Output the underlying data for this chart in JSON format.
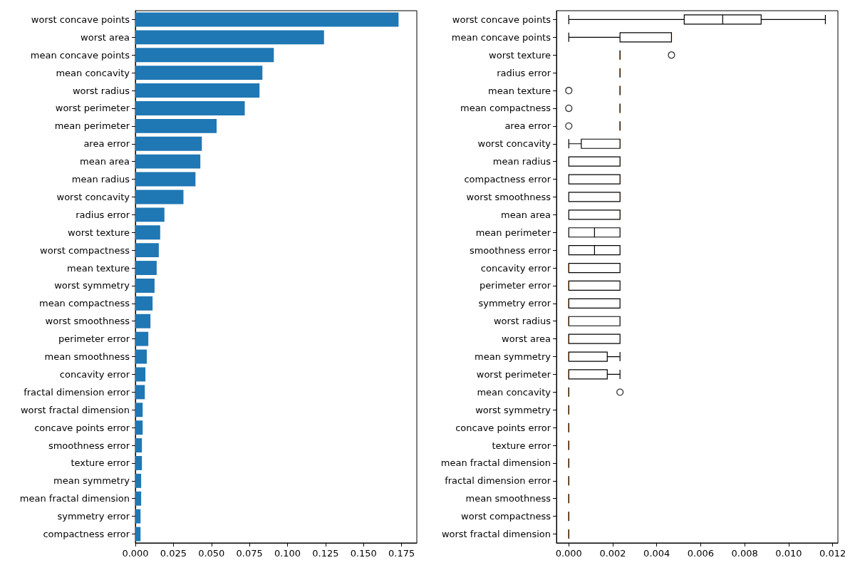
{
  "chart_data": [
    {
      "type": "bar",
      "orientation": "horizontal",
      "color": "#1f77b4",
      "categories": [
        "worst concave points",
        "worst area",
        "mean concave points",
        "mean concavity",
        "worst radius",
        "worst perimeter",
        "mean perimeter",
        "area error",
        "mean area",
        "mean radius",
        "worst concavity",
        "radius error",
        "worst texture",
        "worst compactness",
        "mean texture",
        "worst symmetry",
        "mean compactness",
        "worst smoothness",
        "perimeter error",
        "mean smoothness",
        "concavity error",
        "fractal dimension error",
        "worst fractal dimension",
        "concave points error",
        "smoothness error",
        "texture error",
        "mean symmetry",
        "mean fractal dimension",
        "symmetry error",
        "compactness error"
      ],
      "values": [
        0.173,
        0.124,
        0.091,
        0.0835,
        0.0816,
        0.0719,
        0.0534,
        0.0437,
        0.0427,
        0.0395,
        0.0316,
        0.0191,
        0.0163,
        0.0154,
        0.014,
        0.0126,
        0.0113,
        0.0099,
        0.0085,
        0.0075,
        0.0066,
        0.0062,
        0.0048,
        0.0048,
        0.0043,
        0.0043,
        0.0038,
        0.0038,
        0.0034,
        0.0034
      ],
      "xlim": [
        0,
        0.185
      ],
      "xticks": [
        {
          "value": 0,
          "label": "0.000"
        },
        {
          "value": 0.025,
          "label": "0.025"
        },
        {
          "value": 0.05,
          "label": "0.050"
        },
        {
          "value": 0.075,
          "label": "0.075"
        },
        {
          "value": 0.1,
          "label": "0.100"
        },
        {
          "value": 0.125,
          "label": "0.125"
        },
        {
          "value": 0.15,
          "label": "0.150"
        },
        {
          "value": 0.175,
          "label": "0.175"
        }
      ],
      "grid": false
    },
    {
      "type": "box",
      "orientation": "horizontal",
      "categories": [
        "worst concave points",
        "mean concave points",
        "worst texture",
        "radius error",
        "mean texture",
        "mean compactness",
        "area error",
        "worst concavity",
        "mean radius",
        "compactness error",
        "worst smoothness",
        "mean area",
        "mean perimeter",
        "smoothness error",
        "concavity error",
        "perimeter error",
        "symmetry error",
        "worst radius",
        "worst area",
        "mean symmetry",
        "worst perimeter",
        "mean concavity",
        "worst symmetry",
        "concave points error",
        "texture error",
        "mean fractal dimension",
        "fractal dimension error",
        "mean smoothness",
        "worst compactness",
        "worst fractal dimension"
      ],
      "boxes": [
        {
          "low": 0,
          "q1": 0.00525,
          "median": 0.007,
          "q3": 0.00875,
          "high": 0.01167
        },
        {
          "low": 0,
          "q1": 0.00233,
          "median": 0.00467,
          "q3": 0.00467,
          "high": 0.00467
        },
        {
          "low": 0.00233,
          "q1": 0.00233,
          "median": 0.00233,
          "q3": 0.00233,
          "high": 0.00233,
          "outliers": [
            0.00467
          ]
        },
        {
          "low": 0.00233,
          "q1": 0.00233,
          "median": 0.00233,
          "q3": 0.00233,
          "high": 0.00233
        },
        {
          "low": 0.00233,
          "q1": 0.00233,
          "median": 0.00233,
          "q3": 0.00233,
          "high": 0.00233,
          "outliers": [
            0
          ]
        },
        {
          "low": 0.00233,
          "q1": 0.00233,
          "median": 0.00233,
          "q3": 0.00233,
          "high": 0.00233,
          "outliers": [
            0
          ]
        },
        {
          "low": 0.00233,
          "q1": 0.00233,
          "median": 0.00233,
          "q3": 0.00233,
          "high": 0.00233,
          "outliers": [
            0
          ]
        },
        {
          "low": 0,
          "q1": 0.00057,
          "median": 0.00233,
          "q3": 0.00233,
          "high": 0.00233
        },
        {
          "low": 0,
          "q1": 0,
          "median": 0.00233,
          "q3": 0.00233,
          "high": 0.00233
        },
        {
          "low": 0,
          "q1": 0,
          "median": 0.00233,
          "q3": 0.00233,
          "high": 0.00233
        },
        {
          "low": 0,
          "q1": 0,
          "median": 0.00233,
          "q3": 0.00233,
          "high": 0.00233
        },
        {
          "low": 0,
          "q1": 0,
          "median": 0.00233,
          "q3": 0.00233,
          "high": 0.00233
        },
        {
          "low": 0,
          "q1": 0,
          "median": 0.00117,
          "q3": 0.00233,
          "high": 0.00233
        },
        {
          "low": 0,
          "q1": 0,
          "median": 0.00117,
          "q3": 0.00233,
          "high": 0.00233
        },
        {
          "low": 0,
          "q1": 0,
          "median": 0,
          "q3": 0.00233,
          "high": 0.00233
        },
        {
          "low": 0,
          "q1": 0,
          "median": 0,
          "q3": 0.00233,
          "high": 0.00233
        },
        {
          "low": 0,
          "q1": 0,
          "median": 0,
          "q3": 0.00233,
          "high": 0.00233
        },
        {
          "low": 0,
          "q1": 0,
          "median": 0,
          "q3": 0.00233,
          "high": 0.00233
        },
        {
          "low": 0,
          "q1": 0,
          "median": 0,
          "q3": 0.00233,
          "high": 0.00233
        },
        {
          "low": 0,
          "q1": 0,
          "median": 0,
          "q3": 0.00175,
          "high": 0.00233
        },
        {
          "low": 0,
          "q1": 0,
          "median": 0,
          "q3": 0.00175,
          "high": 0.00233
        },
        {
          "low": 0,
          "q1": 0,
          "median": 0,
          "q3": 0,
          "high": 0,
          "outliers": [
            0.00233
          ]
        },
        {
          "low": 0,
          "q1": 0,
          "median": 0,
          "q3": 0,
          "high": 0
        },
        {
          "low": 0,
          "q1": 0,
          "median": 0,
          "q3": 0,
          "high": 0
        },
        {
          "low": 0,
          "q1": 0,
          "median": 0,
          "q3": 0,
          "high": 0
        },
        {
          "low": 0,
          "q1": 0,
          "median": 0,
          "q3": 0,
          "high": 0
        },
        {
          "low": 0,
          "q1": 0,
          "median": 0,
          "q3": 0,
          "high": 0
        },
        {
          "low": 0,
          "q1": 0,
          "median": 0,
          "q3": 0,
          "high": 0
        },
        {
          "low": 0,
          "q1": 0,
          "median": 0,
          "q3": 0,
          "high": 0
        },
        {
          "low": 0,
          "q1": 0,
          "median": 0,
          "q3": 0,
          "high": 0
        }
      ],
      "xlim": [
        -0.00056,
        0.01224
      ],
      "xticks": [
        {
          "value": 0,
          "label": "0.000"
        },
        {
          "value": 0.002,
          "label": "0.002"
        },
        {
          "value": 0.004,
          "label": "0.004"
        },
        {
          "value": 0.006,
          "label": "0.006"
        },
        {
          "value": 0.008,
          "label": "0.008"
        },
        {
          "value": 0.01,
          "label": "0.010"
        },
        {
          "value": 0.012,
          "label": "0.012"
        }
      ],
      "grid": false
    }
  ]
}
